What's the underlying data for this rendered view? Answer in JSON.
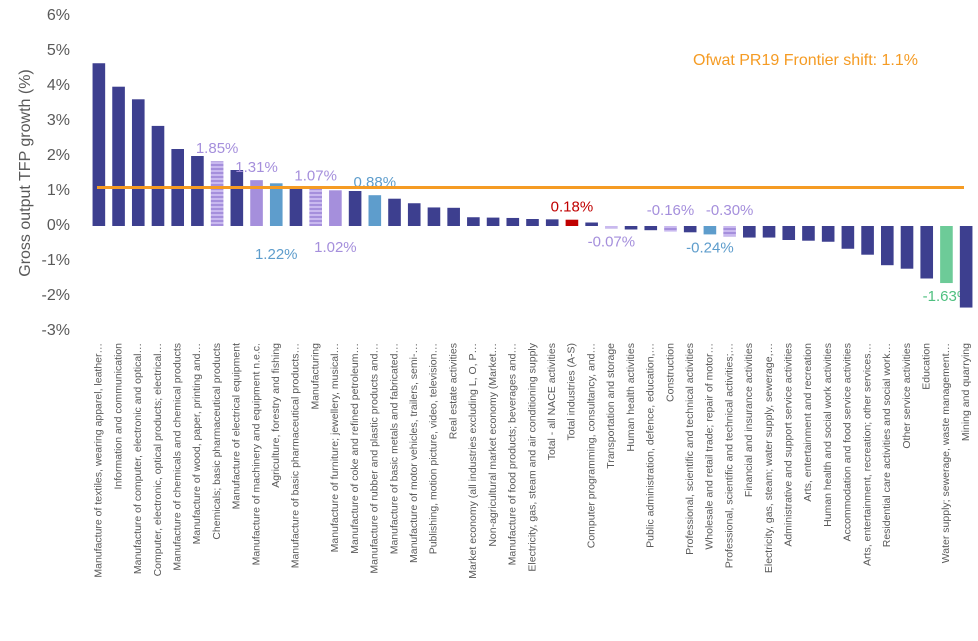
{
  "chart_data": {
    "type": "bar",
    "ylabel": "Gross output TFP growth (%)",
    "annotation": "Ofwat PR19 Frontier shift: 1.1%",
    "reference_line": {
      "value": 1.1,
      "color": "#f59b23"
    },
    "ylim": [
      -3,
      6
    ],
    "yticks": [
      {
        "value": -3,
        "label": "-3%"
      },
      {
        "value": -2,
        "label": "-2%"
      },
      {
        "value": -1,
        "label": "-1%"
      },
      {
        "value": 0,
        "label": "0%"
      },
      {
        "value": 1,
        "label": "1%"
      },
      {
        "value": 2,
        "label": "2%"
      },
      {
        "value": 3,
        "label": "3%"
      },
      {
        "value": 4,
        "label": "4%"
      },
      {
        "value": 5,
        "label": "5%"
      },
      {
        "value": 6,
        "label": "6%"
      }
    ],
    "grid": false,
    "categories": [
      "Manufacture of textiles, wearing apparel, leather…",
      "Information and communication",
      "Manufacture of computer, electronic and optical…",
      "Computer, electronic, optical products; electrical…",
      "Manufacture of chemicals and chemical products",
      "Manufacture of wood, paper, printing and…",
      "Chemicals; basic pharmaceutical products",
      "Manufacture of electrical equipment",
      "Manufacture of machinery and equipment n.e.c.",
      "Agriculture, forestry and fishing",
      "Manufacture of basic pharmaceutical products…",
      "Manufacturing",
      "Manufacture of furniture; jewellery, musical…",
      "Manufacture of coke and refined petroleum…",
      "Manufacture of rubber and plastic products and…",
      "Manufacture of basic metals and fabricated…",
      "Manufacture of motor vehicles, trailers, semi-…",
      "Publishing, motion picture, video, television…",
      "Real estate activities",
      "Market economy (all industries excluding L, O, P…",
      "Non-agricultural market economy (Market…",
      "Manufacture of food products; beverages and…",
      "Electricity, gas, steam and air conditioning supply",
      "Total - all NACE activities",
      "Total industries (A-S)",
      "Computer programming, consultancy, and…",
      "Transportation and storage",
      "Human health activities",
      "Public administration, defence, education,…",
      "Construction",
      "Professional, scientific and technical activities",
      "Wholesale and retail trade; repair of motor…",
      "Professional, scientific and technical activities;…",
      "Financial and insurance activities",
      "Electricity, gas, steam; water supply, sewerage,…",
      "Administrative and support service activities",
      "Arts, entertainment and recreation",
      "Human health and social work activities",
      "Accommodation and food service activities",
      "Arts, entertainment, recreation; other services…",
      "Residential care activities and social work…",
      "Other service activities",
      "Education",
      "Water supply; sewerage, waste management…",
      "Mining and quarrying"
    ],
    "values": [
      4.65,
      3.98,
      3.62,
      2.86,
      2.2,
      2.0,
      1.85,
      1.6,
      1.31,
      1.22,
      1.1,
      1.07,
      1.02,
      1.0,
      0.88,
      0.78,
      0.65,
      0.53,
      0.52,
      0.25,
      0.24,
      0.23,
      0.2,
      0.19,
      0.18,
      0.1,
      -0.07,
      -0.1,
      -0.12,
      -0.16,
      -0.18,
      -0.24,
      -0.3,
      -0.33,
      -0.33,
      -0.4,
      -0.42,
      -0.45,
      -0.65,
      -0.82,
      -1.12,
      -1.22,
      -1.5,
      -1.63,
      -2.33
    ],
    "value_labels": [
      null,
      null,
      null,
      null,
      null,
      null,
      "1.85%",
      null,
      "1.31%",
      "1.22%",
      null,
      "1.07%",
      "1.02%",
      null,
      "0.88%",
      null,
      null,
      null,
      null,
      null,
      null,
      null,
      null,
      null,
      "0.18%",
      null,
      "-0.07%",
      null,
      null,
      "-0.16%",
      null,
      "-0.24%",
      "-0.30%",
      null,
      null,
      null,
      null,
      null,
      null,
      null,
      null,
      null,
      null,
      "-1.63%",
      null
    ],
    "colors": [
      "#3d3f8f",
      "#3d3f8f",
      "#3d3f8f",
      "#3d3f8f",
      "#3d3f8f",
      "#3d3f8f",
      "#b9a6e6",
      "#3d3f8f",
      "#a58fdc",
      "#5e9dcc",
      "#3d3f8f",
      "#b9a6e6",
      "#a58fdc",
      "#3d3f8f",
      "#5e9dcc",
      "#3d3f8f",
      "#3d3f8f",
      "#3d3f8f",
      "#3d3f8f",
      "#3d3f8f",
      "#3d3f8f",
      "#3d3f8f",
      "#3d3f8f",
      "#3d3f8f",
      "#c00000",
      "#3d3f8f",
      "#b9a6e6",
      "#3d3f8f",
      "#3d3f8f",
      "#b9a6e6",
      "#3d3f8f",
      "#5e9dcc",
      "#b9a6e6",
      "#3d3f8f",
      "#3d3f8f",
      "#3d3f8f",
      "#3d3f8f",
      "#3d3f8f",
      "#3d3f8f",
      "#3d3f8f",
      "#3d3f8f",
      "#3d3f8f",
      "#3d3f8f",
      "#6dcb98",
      "#3d3f8f"
    ],
    "hatched": [
      false,
      false,
      false,
      false,
      false,
      false,
      true,
      false,
      false,
      false,
      false,
      true,
      false,
      false,
      false,
      false,
      false,
      false,
      false,
      false,
      false,
      false,
      false,
      false,
      false,
      false,
      true,
      false,
      false,
      true,
      false,
      false,
      true,
      false,
      false,
      false,
      false,
      false,
      false,
      false,
      false,
      false,
      false,
      false,
      false
    ]
  }
}
